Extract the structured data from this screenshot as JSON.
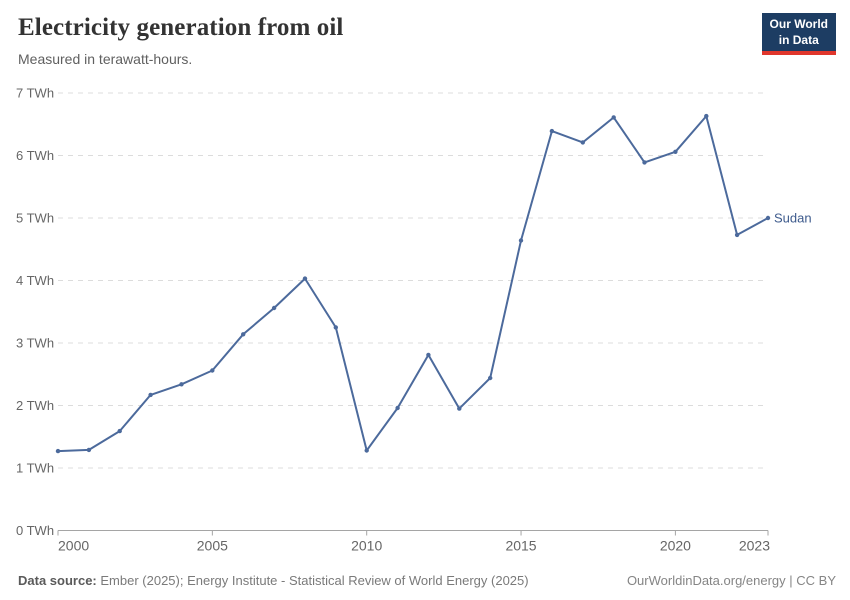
{
  "header": {
    "title": "Electricity generation from oil",
    "subtitle": "Measured in terawatt-hours.",
    "logo": {
      "line1": "Our World",
      "line2": "in Data",
      "bg": "#1d3d63",
      "accent": "#e0362c"
    }
  },
  "chart_data": {
    "type": "line",
    "title": "Electricity generation from oil",
    "ylabel": "",
    "unit": "TWh",
    "grid": true,
    "xlim": [
      2000,
      2023
    ],
    "ylim": [
      0,
      7
    ],
    "x_ticks": [
      2000,
      2005,
      2010,
      2015,
      2020,
      2023
    ],
    "y_ticks": [
      0,
      1,
      2,
      3,
      4,
      5,
      6,
      7
    ],
    "y_tick_suffix": " TWh",
    "series": [
      {
        "name": "Sudan",
        "color": "#4c6a9c",
        "label_color": "#3d5a8c",
        "x": [
          2000,
          2001,
          2002,
          2003,
          2004,
          2005,
          2006,
          2007,
          2008,
          2009,
          2010,
          2011,
          2012,
          2013,
          2014,
          2015,
          2016,
          2017,
          2018,
          2019,
          2020,
          2021,
          2022,
          2023
        ],
        "values": [
          1.27,
          1.29,
          1.59,
          2.17,
          2.34,
          2.56,
          3.14,
          3.56,
          4.03,
          3.25,
          1.28,
          1.96,
          2.81,
          1.95,
          2.44,
          4.64,
          6.39,
          6.21,
          6.61,
          5.89,
          6.06,
          6.63,
          4.73,
          5.0
        ]
      }
    ]
  },
  "footer": {
    "source_label": "Data source:",
    "source_text": "Ember (2025); Energy Institute - Statistical Review of World Energy (2025)",
    "rights": "OurWorldinData.org/energy | CC BY"
  }
}
